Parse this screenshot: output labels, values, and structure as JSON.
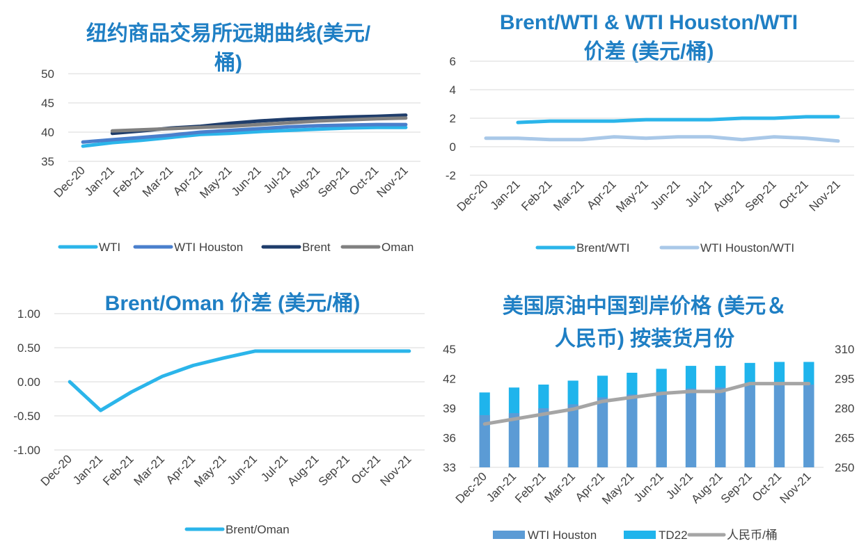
{
  "colors": {
    "wti": "#2bb5ea",
    "wti_houston": "#4a7fcc",
    "brent": "#1f3d6b",
    "oman": "#808080",
    "brent_wti": "#2bb5ea",
    "houston_wti": "#a9c8e8",
    "brent_oman": "#2bb5ea",
    "bar_houston": "#5b9bd5",
    "bar_td22": "#1fb4ec",
    "rmb_line": "#a5a5a5",
    "title": "#1f7fc4",
    "grid": "#d9d9d9"
  },
  "chart_data": [
    {
      "id": "c1",
      "type": "line",
      "title_lines": [
        "纽约商品交易所远期曲线(美元/",
        "桶)"
      ],
      "categories": [
        "Dec-20",
        "Jan-21",
        "Feb-21",
        "Mar-21",
        "Apr-21",
        "May-21",
        "Jun-21",
        "Jul-21",
        "Aug-21",
        "Sep-21",
        "Oct-21",
        "Nov-21"
      ],
      "ylim": [
        35,
        50
      ],
      "yticks": [
        "50",
        "45",
        "40",
        "35"
      ],
      "grid": true,
      "legend_position": "bottom",
      "series": [
        {
          "name": "WTI",
          "values": [
            37.6,
            38.2,
            38.6,
            39.1,
            39.6,
            39.8,
            40.1,
            40.3,
            40.5,
            40.7,
            40.8,
            40.8
          ]
        },
        {
          "name": "WTI Houston",
          "values": [
            38.3,
            38.7,
            39.1,
            39.5,
            40.0,
            40.3,
            40.6,
            40.9,
            41.1,
            41.2,
            41.3,
            41.3
          ]
        },
        {
          "name": "Brent",
          "values": [
            null,
            39.8,
            40.2,
            40.7,
            41.0,
            41.5,
            41.9,
            42.2,
            42.4,
            42.6,
            42.7,
            42.9
          ]
        },
        {
          "name": "Oman",
          "values": [
            null,
            40.2,
            40.4,
            40.6,
            40.8,
            41.0,
            41.3,
            41.6,
            41.9,
            42.1,
            42.3,
            42.4
          ]
        }
      ]
    },
    {
      "id": "c2",
      "type": "line",
      "title_lines": [
        "Brent/WTI & WTI Houston/WTI",
        "价差 (美元/桶)"
      ],
      "categories": [
        "Dec-20",
        "Jan-21",
        "Feb-21",
        "Mar-21",
        "Apr-21",
        "May-21",
        "Jun-21",
        "Jul-21",
        "Aug-21",
        "Sep-21",
        "Oct-21",
        "Nov-21"
      ],
      "ylim": [
        -2,
        6
      ],
      "yticks": [
        "6",
        "4",
        "2",
        "0",
        "-2"
      ],
      "grid": true,
      "legend_position": "bottom",
      "series": [
        {
          "name": "Brent/WTI",
          "values": [
            null,
            1.7,
            1.8,
            1.8,
            1.8,
            1.9,
            1.9,
            1.9,
            2.0,
            2.0,
            2.1,
            2.1
          ]
        },
        {
          "name": "WTI Houston/WTI",
          "values": [
            0.6,
            0.6,
            0.5,
            0.5,
            0.7,
            0.6,
            0.7,
            0.7,
            0.5,
            0.7,
            0.6,
            0.4
          ]
        }
      ]
    },
    {
      "id": "c3",
      "type": "line",
      "title_lines": [
        "Brent/Oman 价差 (美元/桶)"
      ],
      "categories": [
        "Dec-20",
        "Jan-21",
        "Feb-21",
        "Mar-21",
        "Apr-21",
        "May-21",
        "Jun-21",
        "Jul-21",
        "Aug-21",
        "Sep-21",
        "Oct-21",
        "Nov-21"
      ],
      "ylim": [
        -1.0,
        1.0
      ],
      "yticks": [
        "1.00",
        "0.50",
        "0.00",
        "-0.50",
        "-1.00"
      ],
      "grid": true,
      "legend_position": "bottom",
      "series": [
        {
          "name": "Brent/Oman",
          "values": [
            0.0,
            -0.42,
            -0.15,
            0.08,
            0.24,
            0.35,
            0.45,
            0.45,
            0.45,
            0.45,
            0.45,
            0.45
          ]
        }
      ]
    },
    {
      "id": "c4",
      "type": "bar",
      "title_lines": [
        "美国原油中国到岸价格 (美元＆",
        "人民币) 按装货月份"
      ],
      "categories": [
        "Dec-20",
        "Jan-21",
        "Feb-21",
        "Mar-21",
        "Apr-21",
        "May-21",
        "Jun-21",
        "Jul-21",
        "Aug-21",
        "Sep-21",
        "Oct-21",
        "Nov-21"
      ],
      "ylim": [
        33,
        45
      ],
      "yticks": [
        "45",
        "42",
        "39",
        "36",
        "33"
      ],
      "y2lim": [
        250,
        310
      ],
      "y2ticks": [
        "310",
        "295",
        "280",
        "265",
        "250"
      ],
      "grid": false,
      "legend_position": "bottom",
      "series": [
        {
          "name": "WTI Houston",
          "type": "bar",
          "values": [
            38.3,
            38.5,
            39.0,
            39.4,
            40.1,
            40.4,
            40.7,
            41.0,
            41.1,
            41.3,
            41.4,
            41.4
          ]
        },
        {
          "name": "TD22",
          "type": "bar",
          "values": [
            40.6,
            41.1,
            41.4,
            41.8,
            42.3,
            42.6,
            43.0,
            43.3,
            43.3,
            43.6,
            43.7,
            43.7
          ]
        },
        {
          "name": "人民币/桶",
          "type": "line",
          "axis": "secondary",
          "values": [
            272.0,
            274.5,
            277.0,
            279.5,
            283.5,
            285.5,
            287.5,
            288.5,
            288.5,
            292.5,
            292.5,
            292.5
          ]
        }
      ]
    }
  ]
}
